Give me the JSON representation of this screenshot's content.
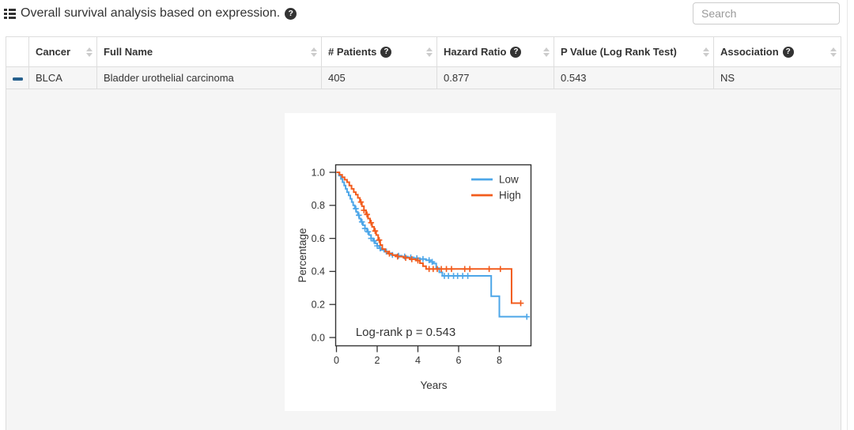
{
  "toolbar": {
    "title": "Overall survival analysis based on expression.",
    "help_glyph": "?",
    "search_placeholder": "Search"
  },
  "table": {
    "columns": [
      {
        "label": "",
        "sortable": false,
        "help": false
      },
      {
        "label": "Cancer",
        "sortable": true,
        "help": false
      },
      {
        "label": "Full Name",
        "sortable": true,
        "help": false
      },
      {
        "label": "# Patients",
        "sortable": true,
        "help": true
      },
      {
        "label": "Hazard Ratio",
        "sortable": true,
        "help": true
      },
      {
        "label": "P Value (Log Rank Test)",
        "sortable": true,
        "help": false
      },
      {
        "label": "Association",
        "sortable": true,
        "help": true
      }
    ],
    "rows": [
      {
        "expand_state": "collapse",
        "cancer": "BLCA",
        "full_name": "Bladder urothelial carcinoma",
        "patients": "405",
        "hazard_ratio": "0.877",
        "p_value": "0.543",
        "association": "NS"
      }
    ]
  },
  "chart_data": {
    "type": "line",
    "subtype": "kaplan-meier-step",
    "title": "",
    "xlabel": "Years",
    "ylabel": "Percentage",
    "xlim": [
      0,
      9.55
    ],
    "ylim": [
      0,
      1.0
    ],
    "x_ticks": [
      0,
      2,
      4,
      6,
      8
    ],
    "y_ticks": [
      "0.0",
      "0.2",
      "0.4",
      "0.6",
      "0.8",
      "1.0"
    ],
    "grid": false,
    "legend_position": "top-right-inside",
    "annotation": "Log-rank p = 0.543",
    "series": [
      {
        "name": "Low",
        "color": "#4da6e8",
        "points": [
          [
            0,
            1.0
          ],
          [
            0.12,
            0.98
          ],
          [
            0.22,
            0.96
          ],
          [
            0.3,
            0.94
          ],
          [
            0.38,
            0.92
          ],
          [
            0.45,
            0.9
          ],
          [
            0.52,
            0.88
          ],
          [
            0.6,
            0.86
          ],
          [
            0.68,
            0.84
          ],
          [
            0.75,
            0.82
          ],
          [
            0.82,
            0.8
          ],
          [
            0.9,
            0.78
          ],
          [
            0.97,
            0.76
          ],
          [
            1.05,
            0.74
          ],
          [
            1.12,
            0.72
          ],
          [
            1.2,
            0.7
          ],
          [
            1.3,
            0.68
          ],
          [
            1.4,
            0.66
          ],
          [
            1.5,
            0.64
          ],
          [
            1.6,
            0.62
          ],
          [
            1.7,
            0.6
          ],
          [
            1.8,
            0.585
          ],
          [
            1.9,
            0.57
          ],
          [
            2.0,
            0.555
          ],
          [
            2.1,
            0.54
          ],
          [
            2.2,
            0.53
          ],
          [
            2.35,
            0.52
          ],
          [
            2.5,
            0.51
          ],
          [
            2.7,
            0.5
          ],
          [
            2.95,
            0.495
          ],
          [
            3.2,
            0.49
          ],
          [
            3.5,
            0.485
          ],
          [
            3.8,
            0.48
          ],
          [
            4.1,
            0.475
          ],
          [
            4.4,
            0.468
          ],
          [
            4.6,
            0.458
          ],
          [
            4.75,
            0.448
          ],
          [
            4.9,
            0.42
          ],
          [
            5.05,
            0.395
          ],
          [
            5.2,
            0.373
          ],
          [
            7.6,
            0.25
          ],
          [
            8.0,
            0.126
          ],
          [
            9.35,
            0.126
          ]
        ],
        "censor_times": [
          0.95,
          1.1,
          1.25,
          1.4,
          1.55,
          1.7,
          1.85,
          2.0,
          2.15,
          2.45,
          2.75,
          3.05,
          3.35,
          3.65,
          3.95,
          4.25,
          4.55,
          4.7,
          5.3,
          5.5,
          5.75,
          5.95,
          6.2,
          6.45,
          9.35
        ]
      },
      {
        "name": "High",
        "color": "#f25c1d",
        "points": [
          [
            0,
            1.0
          ],
          [
            0.15,
            0.985
          ],
          [
            0.28,
            0.97
          ],
          [
            0.4,
            0.955
          ],
          [
            0.52,
            0.94
          ],
          [
            0.63,
            0.92
          ],
          [
            0.74,
            0.9
          ],
          [
            0.85,
            0.88
          ],
          [
            0.95,
            0.865
          ],
          [
            1.05,
            0.845
          ],
          [
            1.15,
            0.82
          ],
          [
            1.25,
            0.795
          ],
          [
            1.35,
            0.77
          ],
          [
            1.45,
            0.745
          ],
          [
            1.55,
            0.72
          ],
          [
            1.65,
            0.695
          ],
          [
            1.75,
            0.67
          ],
          [
            1.85,
            0.645
          ],
          [
            1.95,
            0.62
          ],
          [
            2.05,
            0.59
          ],
          [
            2.15,
            0.56
          ],
          [
            2.25,
            0.535
          ],
          [
            2.4,
            0.52
          ],
          [
            2.55,
            0.508
          ],
          [
            2.75,
            0.498
          ],
          [
            3.0,
            0.49
          ],
          [
            3.3,
            0.482
          ],
          [
            3.6,
            0.474
          ],
          [
            3.9,
            0.466
          ],
          [
            4.1,
            0.45
          ],
          [
            4.25,
            0.432
          ],
          [
            4.4,
            0.415
          ],
          [
            8.6,
            0.208
          ],
          [
            9.05,
            0.208
          ]
        ],
        "censor_times": [
          1.2,
          1.35,
          1.5,
          1.7,
          1.9,
          2.1,
          2.6,
          3.0,
          3.4,
          3.7,
          4.0,
          4.55,
          4.75,
          4.95,
          5.15,
          5.4,
          5.65,
          6.3,
          6.55,
          7.5,
          8.05,
          9.05
        ]
      }
    ]
  }
}
